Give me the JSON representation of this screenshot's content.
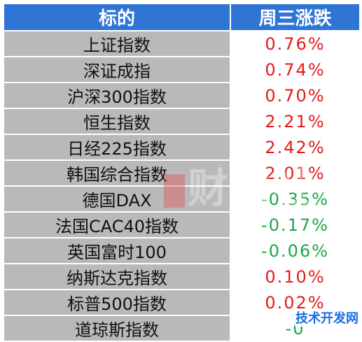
{
  "table": {
    "headers": [
      "标的",
      "周三涨跌"
    ],
    "rows": [
      {
        "name": "上证指数",
        "change": "0.76%",
        "direction": "up"
      },
      {
        "name": "深证成指",
        "change": "0.74%",
        "direction": "up"
      },
      {
        "name": "沪深300指数",
        "change": "0.70%",
        "direction": "up"
      },
      {
        "name": "恒生指数",
        "change": "2.21%",
        "direction": "up"
      },
      {
        "name": "日经225指数",
        "change": "2.42%",
        "direction": "up"
      },
      {
        "name": "韩国综合指数",
        "change": "2.01%",
        "direction": "up"
      },
      {
        "name": "德国DAX",
        "change": "-0.35%",
        "direction": "down"
      },
      {
        "name": "法国CAC40指数",
        "change": "-0.17%",
        "direction": "down"
      },
      {
        "name": "英国富时100",
        "change": "-0.06%",
        "direction": "down"
      },
      {
        "name": "纳斯达克指数",
        "change": "0.10%",
        "direction": "up"
      },
      {
        "name": "标普500指数",
        "change": "0.02%",
        "direction": "up"
      },
      {
        "name": "道琼斯指数",
        "change": "-0",
        "direction": "down"
      }
    ]
  },
  "colors": {
    "header_bg": "#2e75d6",
    "name_cell_bg": "#b9b9b9",
    "up": "#e31b1b",
    "down": "#1aa84a"
  },
  "watermark": {
    "text": "财联社"
  },
  "badge": {
    "text": "技术开发网"
  }
}
